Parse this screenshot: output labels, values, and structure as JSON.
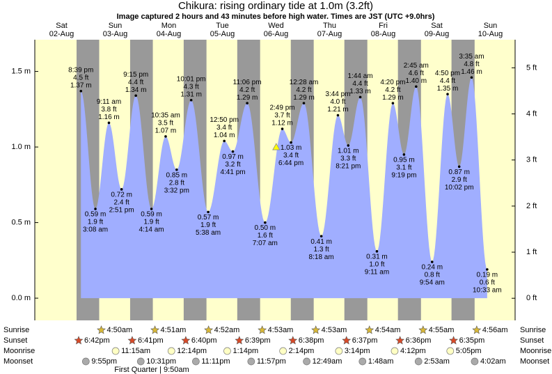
{
  "chart_data": {
    "type": "area",
    "title": "Chikura: rising  ordinary tide at 1.0m (3.2ft)",
    "subtitle": "Image captured 2 hours and 43 minutes before high water. Times are JST (UTC +9.0hrs)",
    "days": [
      {
        "weekday": "Sat",
        "date": "02-Aug"
      },
      {
        "weekday": "Sun",
        "date": "03-Aug"
      },
      {
        "weekday": "Mon",
        "date": "04-Aug"
      },
      {
        "weekday": "Tue",
        "date": "05-Aug"
      },
      {
        "weekday": "Wed",
        "date": "06-Aug"
      },
      {
        "weekday": "Thu",
        "date": "07-Aug"
      },
      {
        "weekday": "Fri",
        "date": "08-Aug"
      },
      {
        "weekday": "Sat",
        "date": "09-Aug"
      },
      {
        "weekday": "Sun",
        "date": "10-Aug"
      }
    ],
    "ylim": [
      -0.147,
      1.71
    ],
    "yticks": [
      {
        "value": 0,
        "label": "0.0 m"
      },
      {
        "value": 0.5,
        "label": "0.5 m"
      },
      {
        "value": 1,
        "label": "1.0 m"
      },
      {
        "value": 1.5,
        "label": "1.5 m"
      }
    ],
    "y2lim": [
      -0.48,
      5.61
    ],
    "y2ticks": [
      {
        "value": 0,
        "label": "0 ft"
      },
      {
        "value": 1,
        "label": "1 ft"
      },
      {
        "value": 2,
        "label": "2 ft"
      },
      {
        "value": 3,
        "label": "3 ft"
      },
      {
        "value": 4,
        "label": "4 ft"
      },
      {
        "value": 5,
        "label": "5 ft"
      }
    ],
    "colors": {
      "day": "#ffffcc",
      "night": "#999999",
      "tide": "#a0aeff",
      "date": "#dd0000"
    },
    "extremes": [
      {
        "date": "02-Aug",
        "time": "8:39 pm",
        "height_ft": {
          "value": 4.5,
          "label": "4.5 ft"
        },
        "height_m": {
          "value": 1.37,
          "label": "1.37 m"
        }
      },
      {
        "date": "03-Aug",
        "time": "3:08 am",
        "height_ft": {
          "value": 1.9,
          "label": "1.9 ft"
        },
        "height_m": {
          "value": 0.59,
          "label": "0.59 m"
        }
      },
      {
        "date": "03-Aug",
        "time": "9:11 am",
        "height_ft": {
          "value": 3.8,
          "label": "3.8 ft"
        },
        "height_m": {
          "value": 1.16,
          "label": "1.16 m"
        }
      },
      {
        "date": "03-Aug",
        "time": "2:51 pm",
        "height_ft": {
          "value": 2.4,
          "label": "2.4 ft"
        },
        "height_m": {
          "value": 0.72,
          "label": "0.72 m"
        }
      },
      {
        "date": "03-Aug",
        "time": "9:15 pm",
        "height_ft": {
          "value": 4.4,
          "label": "4.4 ft"
        },
        "height_m": {
          "value": 1.34,
          "label": "1.34 m"
        }
      },
      {
        "date": "04-Aug",
        "time": "4:14 am",
        "height_ft": {
          "value": 1.9,
          "label": "1.9 ft"
        },
        "height_m": {
          "value": 0.59,
          "label": "0.59 m"
        }
      },
      {
        "date": "04-Aug",
        "time": "10:35 am",
        "height_ft": {
          "value": 3.5,
          "label": "3.5 ft"
        },
        "height_m": {
          "value": 1.07,
          "label": "1.07 m"
        }
      },
      {
        "date": "04-Aug",
        "time": "3:32 pm",
        "height_ft": {
          "value": 2.8,
          "label": "2.8 ft"
        },
        "height_m": {
          "value": 0.85,
          "label": "0.85 m"
        }
      },
      {
        "date": "04-Aug",
        "time": "10:01 pm",
        "height_ft": {
          "value": 4.3,
          "label": "4.3 ft"
        },
        "height_m": {
          "value": 1.31,
          "label": "1.31 m"
        }
      },
      {
        "date": "05-Aug",
        "time": "5:38 am",
        "height_ft": {
          "value": 1.9,
          "label": "1.9 ft"
        },
        "height_m": {
          "value": 0.57,
          "label": "0.57 m"
        }
      },
      {
        "date": "05-Aug",
        "time": "12:50 pm",
        "height_ft": {
          "value": 3.4,
          "label": "3.4 ft"
        },
        "height_m": {
          "value": 1.04,
          "label": "1.04 m"
        }
      },
      {
        "date": "05-Aug",
        "time": "4:41 pm",
        "height_ft": {
          "value": 3.2,
          "label": "3.2 ft"
        },
        "height_m": {
          "value": 0.97,
          "label": "0.97 m"
        }
      },
      {
        "date": "05-Aug",
        "time": "11:06 pm",
        "height_ft": {
          "value": 4.2,
          "label": "4.2 ft"
        },
        "height_m": {
          "value": 1.29,
          "label": "1.29 m"
        }
      },
      {
        "date": "06-Aug",
        "time": "7:07 am",
        "height_ft": {
          "value": 1.6,
          "label": "1.6 ft"
        },
        "height_m": {
          "value": 0.5,
          "label": "0.50 m"
        }
      },
      {
        "date": "06-Aug",
        "time": "2:49 pm",
        "height_ft": {
          "value": 3.7,
          "label": "3.7 ft"
        },
        "height_m": {
          "value": 1.12,
          "label": "1.12 m"
        }
      },
      {
        "date": "06-Aug",
        "time": "6:44 pm",
        "height_ft": {
          "value": 3.4,
          "label": "3.4 ft"
        },
        "height_m": {
          "value": 1.03,
          "label": "1.03 m"
        }
      },
      {
        "date": "07-Aug",
        "time": "12:28 am",
        "height_ft": {
          "value": 4.2,
          "label": "4.2 ft"
        },
        "height_m": {
          "value": 1.29,
          "label": "1.29 m"
        }
      },
      {
        "date": "07-Aug",
        "time": "8:18 am",
        "height_ft": {
          "value": 1.3,
          "label": "1.3 ft"
        },
        "height_m": {
          "value": 0.41,
          "label": "0.41 m"
        }
      },
      {
        "date": "07-Aug",
        "time": "3:44 pm",
        "height_ft": {
          "value": 4.0,
          "label": "4.0 ft"
        },
        "height_m": {
          "value": 1.21,
          "label": "1.21 m"
        }
      },
      {
        "date": "07-Aug",
        "time": "8:21 pm",
        "height_ft": {
          "value": 3.3,
          "label": "3.3 ft"
        },
        "height_m": {
          "value": 1.01,
          "label": "1.01 m"
        }
      },
      {
        "date": "08-Aug",
        "time": "1:44 am",
        "height_ft": {
          "value": 4.4,
          "label": "4.4 ft"
        },
        "height_m": {
          "value": 1.33,
          "label": "1.33 m"
        }
      },
      {
        "date": "08-Aug",
        "time": "9:11 am",
        "height_ft": {
          "value": 1.0,
          "label": "1.0 ft"
        },
        "height_m": {
          "value": 0.31,
          "label": "0.31 m"
        }
      },
      {
        "date": "08-Aug",
        "time": "4:20 pm",
        "height_ft": {
          "value": 4.2,
          "label": "4.2 ft"
        },
        "height_m": {
          "value": 1.29,
          "label": "1.29 m"
        }
      },
      {
        "date": "08-Aug",
        "time": "9:19 pm",
        "height_ft": {
          "value": 3.1,
          "label": "3.1 ft"
        },
        "height_m": {
          "value": 0.95,
          "label": "0.95 m"
        }
      },
      {
        "date": "09-Aug",
        "time": "2:45 am",
        "height_ft": {
          "value": 4.6,
          "label": "4.6 ft"
        },
        "height_m": {
          "value": 1.4,
          "label": "1.40 m"
        }
      },
      {
        "date": "09-Aug",
        "time": "9:54 am",
        "height_ft": {
          "value": 0.8,
          "label": "0.8 ft"
        },
        "height_m": {
          "value": 0.24,
          "label": "0.24 m"
        }
      },
      {
        "date": "09-Aug",
        "time": "4:50 pm",
        "height_ft": {
          "value": 4.4,
          "label": "4.4 ft"
        },
        "height_m": {
          "value": 1.35,
          "label": "1.35 m"
        }
      },
      {
        "date": "09-Aug",
        "time": "10:02 pm",
        "height_ft": {
          "value": 2.9,
          "label": "2.9 ft"
        },
        "height_m": {
          "value": 0.87,
          "label": "0.87 m"
        }
      },
      {
        "date": "10-Aug",
        "time": "3:35 am",
        "height_ft": {
          "value": 4.8,
          "label": "4.8 ft"
        },
        "height_m": {
          "value": 1.46,
          "label": "1.46 m"
        }
      },
      {
        "date": "10-Aug",
        "time": "10:33 am",
        "height_ft": {
          "value": 0.6,
          "label": "0.6 ft"
        },
        "height_m": {
          "value": 0.19,
          "label": "0.19 m"
        }
      }
    ],
    "now": {
      "date": "06-Aug",
      "hour": 12.1,
      "height_m": 1.0
    },
    "rows": {
      "sunrise": {
        "label": "Sunrise",
        "events": [
          {
            "date": "03-Aug",
            "time": "4:50am"
          },
          {
            "date": "04-Aug",
            "time": "4:51am"
          },
          {
            "date": "05-Aug",
            "time": "4:52am"
          },
          {
            "date": "06-Aug",
            "time": "4:53am"
          },
          {
            "date": "07-Aug",
            "time": "4:53am"
          },
          {
            "date": "08-Aug",
            "time": "4:54am"
          },
          {
            "date": "09-Aug",
            "time": "4:55am"
          },
          {
            "date": "10-Aug",
            "time": "4:56am"
          }
        ]
      },
      "sunset": {
        "label": "Sunset",
        "events": [
          {
            "date": "02-Aug",
            "time": "6:42pm"
          },
          {
            "date": "03-Aug",
            "time": "6:41pm"
          },
          {
            "date": "04-Aug",
            "time": "6:40pm"
          },
          {
            "date": "05-Aug",
            "time": "6:39pm"
          },
          {
            "date": "06-Aug",
            "time": "6:38pm"
          },
          {
            "date": "07-Aug",
            "time": "6:37pm"
          },
          {
            "date": "08-Aug",
            "time": "6:36pm"
          },
          {
            "date": "09-Aug",
            "time": "6:35pm"
          }
        ]
      },
      "moonrise": {
        "label": "Moonrise",
        "events": [
          {
            "date": "03-Aug",
            "time": "11:15am"
          },
          {
            "date": "04-Aug",
            "time": "12:14pm"
          },
          {
            "date": "05-Aug",
            "time": "1:14pm"
          },
          {
            "date": "06-Aug",
            "time": "2:14pm"
          },
          {
            "date": "07-Aug",
            "time": "3:14pm"
          },
          {
            "date": "08-Aug",
            "time": "4:12pm"
          },
          {
            "date": "09-Aug",
            "time": "5:05pm"
          }
        ]
      },
      "moonset": {
        "label": "Moonset",
        "events": [
          {
            "date": "02-Aug",
            "time": "9:55pm"
          },
          {
            "date": "03-Aug",
            "time": "10:31pm"
          },
          {
            "date": "04-Aug",
            "time": "11:11pm"
          },
          {
            "date": "05-Aug",
            "time": "11:57pm"
          },
          {
            "date": "07-Aug",
            "time": "12:49am"
          },
          {
            "date": "08-Aug",
            "time": "1:48am"
          },
          {
            "date": "09-Aug",
            "time": "2:53am"
          },
          {
            "date": "10-Aug",
            "time": "4:02am"
          }
        ]
      }
    },
    "moon_phase": "First Quarter | 9:50am"
  }
}
